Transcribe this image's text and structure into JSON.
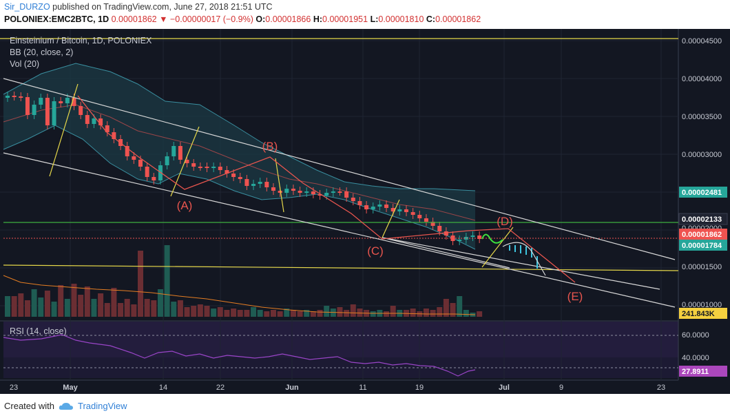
{
  "header": {
    "author": "Sir_DURZO",
    "published": " published on TradingView.com, June 27, 2018 21:51 UTC",
    "symbol": "POLONIEX:EMC2BTC, 1D",
    "last": "0.00001862",
    "arrow": "▼",
    "change": "−0.00000017 (−0.9%)",
    "o_label": "O:",
    "o": "0.00001866",
    "h_label": "H:",
    "h": "0.00001951",
    "l_label": "L:",
    "l": "0.00001810",
    "c_label": "C:",
    "c": "0.00001862"
  },
  "legend": {
    "title": "Einsteinium / Bitcoin, 1D, POLONIEX",
    "bb": "BB (20, close, 2)",
    "vol": "Vol (20)",
    "rsi": "RSI (14, close)"
  },
  "price_axis": {
    "ticks": [
      "0.00004500",
      "0.00004000",
      "0.00003500",
      "0.00003000",
      "0.00002000",
      "0.00001500",
      "0.00001000"
    ],
    "tags": [
      {
        "label": "0.00002481",
        "color": "#26a69a",
        "text_color": "#ffffff"
      },
      {
        "label": "0.00002133",
        "color": "#1e2230",
        "text_color": "#ffffff"
      },
      {
        "label": "0.00001862",
        "color": "#ef5350",
        "text_color": "#ffffff"
      },
      {
        "label": "0.00001784",
        "color": "#26a69a",
        "text_color": "#ffffff"
      },
      {
        "label": "241.843K",
        "color": "#f4d03f",
        "text_color": "#131722"
      }
    ]
  },
  "rsi_axis": {
    "ticks": [
      "60.0000",
      "40.0000"
    ],
    "tag": {
      "label": "27.8911",
      "color": "#ab47bc",
      "text_color": "#ffffff"
    }
  },
  "time_axis": {
    "labels": [
      "23",
      "May",
      "14",
      "22",
      "Jun",
      "11",
      "19",
      "Jul",
      "9",
      "23"
    ]
  },
  "annotations": [
    "(A)",
    "(B)",
    "(C)",
    "(D)",
    "(E)"
  ],
  "footer": {
    "created": "Created with",
    "brand": "TradingView"
  },
  "colors": {
    "background": "#131722",
    "up": "#26a69a",
    "down": "#ef5350",
    "annotation": "#e8554e"
  }
}
